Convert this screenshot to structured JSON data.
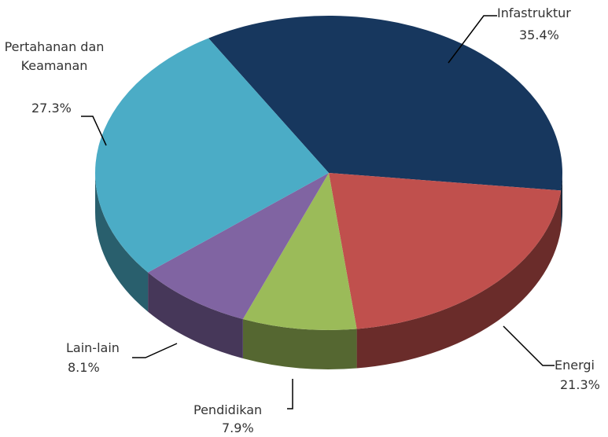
{
  "chart_data": {
    "type": "pie",
    "categories": [
      "Infastruktur",
      "Energi",
      "Pendidikan",
      "Lain-lain",
      "Pertahanan dan Keamanan"
    ],
    "values": [
      35.4,
      21.3,
      7.9,
      8.1,
      27.3
    ],
    "value_labels": [
      "35.4%",
      "21.3%",
      "7.9%",
      "8.1%",
      "27.3%"
    ],
    "colors": [
      "#17375e",
      "#c0504d",
      "#9bbb59",
      "#8064a2",
      "#4bacc6"
    ]
  }
}
